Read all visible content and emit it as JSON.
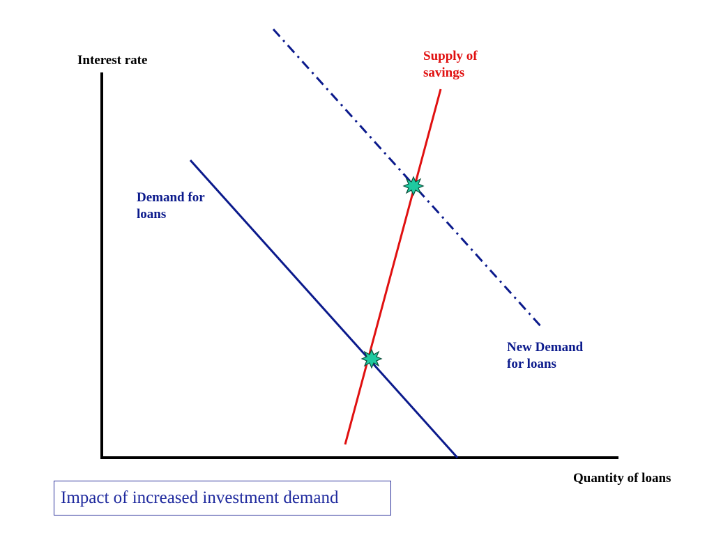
{
  "axes": {
    "y_label": "Interest rate",
    "x_label": "Quantity of loans"
  },
  "curves": {
    "supply": {
      "label_lines": [
        "Supply of",
        "savings"
      ],
      "color": "#e01010",
      "style": "solid"
    },
    "demand": {
      "label_lines": [
        "Demand for",
        "loans"
      ],
      "color": "#0b1a8c",
      "style": "solid"
    },
    "new_demand": {
      "label_lines": [
        "New Demand",
        "for loans"
      ],
      "color": "#0b1a8c",
      "style": "dash-dot"
    }
  },
  "equilibria": [
    {
      "name": "original-equilibrium",
      "color": "#1fc9a0"
    },
    {
      "name": "new-equilibrium",
      "color": "#1fc9a0"
    }
  ],
  "caption": "Impact of increased investment demand",
  "colors": {
    "axis": "#000000",
    "marker_outline": "#0a4f3a",
    "caption_border": "#2a2f9a"
  }
}
